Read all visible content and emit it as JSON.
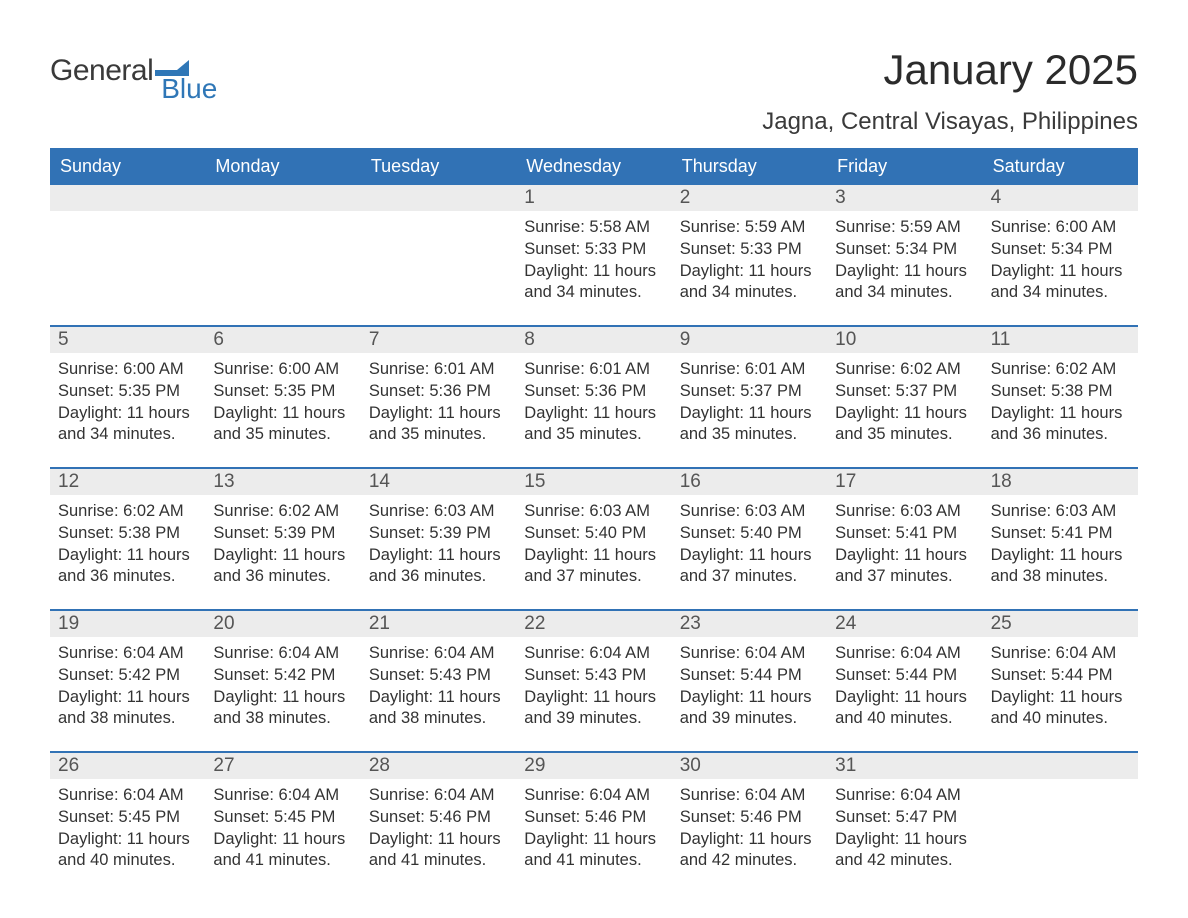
{
  "logo": {
    "text1": "General",
    "text2": "Blue",
    "flag_color": "#2f77b7",
    "text1_color": "#3a3a3a"
  },
  "title": "January 2025",
  "location": "Jagna, Central Visayas, Philippines",
  "colors": {
    "header_bg": "#3172b5",
    "header_text": "#ffffff",
    "daynum_bg": "#ececec",
    "daynum_text": "#555555",
    "body_text": "#333333",
    "week_border": "#3172b5",
    "page_bg": "#ffffff"
  },
  "weekdays": [
    "Sunday",
    "Monday",
    "Tuesday",
    "Wednesday",
    "Thursday",
    "Friday",
    "Saturday"
  ],
  "weeks": [
    [
      {
        "day": "",
        "sunrise": "",
        "sunset": "",
        "daylight": ""
      },
      {
        "day": "",
        "sunrise": "",
        "sunset": "",
        "daylight": ""
      },
      {
        "day": "",
        "sunrise": "",
        "sunset": "",
        "daylight": ""
      },
      {
        "day": "1",
        "sunrise": "Sunrise: 5:58 AM",
        "sunset": "Sunset: 5:33 PM",
        "daylight": "Daylight: 11 hours and 34 minutes."
      },
      {
        "day": "2",
        "sunrise": "Sunrise: 5:59 AM",
        "sunset": "Sunset: 5:33 PM",
        "daylight": "Daylight: 11 hours and 34 minutes."
      },
      {
        "day": "3",
        "sunrise": "Sunrise: 5:59 AM",
        "sunset": "Sunset: 5:34 PM",
        "daylight": "Daylight: 11 hours and 34 minutes."
      },
      {
        "day": "4",
        "sunrise": "Sunrise: 6:00 AM",
        "sunset": "Sunset: 5:34 PM",
        "daylight": "Daylight: 11 hours and 34 minutes."
      }
    ],
    [
      {
        "day": "5",
        "sunrise": "Sunrise: 6:00 AM",
        "sunset": "Sunset: 5:35 PM",
        "daylight": "Daylight: 11 hours and 34 minutes."
      },
      {
        "day": "6",
        "sunrise": "Sunrise: 6:00 AM",
        "sunset": "Sunset: 5:35 PM",
        "daylight": "Daylight: 11 hours and 35 minutes."
      },
      {
        "day": "7",
        "sunrise": "Sunrise: 6:01 AM",
        "sunset": "Sunset: 5:36 PM",
        "daylight": "Daylight: 11 hours and 35 minutes."
      },
      {
        "day": "8",
        "sunrise": "Sunrise: 6:01 AM",
        "sunset": "Sunset: 5:36 PM",
        "daylight": "Daylight: 11 hours and 35 minutes."
      },
      {
        "day": "9",
        "sunrise": "Sunrise: 6:01 AM",
        "sunset": "Sunset: 5:37 PM",
        "daylight": "Daylight: 11 hours and 35 minutes."
      },
      {
        "day": "10",
        "sunrise": "Sunrise: 6:02 AM",
        "sunset": "Sunset: 5:37 PM",
        "daylight": "Daylight: 11 hours and 35 minutes."
      },
      {
        "day": "11",
        "sunrise": "Sunrise: 6:02 AM",
        "sunset": "Sunset: 5:38 PM",
        "daylight": "Daylight: 11 hours and 36 minutes."
      }
    ],
    [
      {
        "day": "12",
        "sunrise": "Sunrise: 6:02 AM",
        "sunset": "Sunset: 5:38 PM",
        "daylight": "Daylight: 11 hours and 36 minutes."
      },
      {
        "day": "13",
        "sunrise": "Sunrise: 6:02 AM",
        "sunset": "Sunset: 5:39 PM",
        "daylight": "Daylight: 11 hours and 36 minutes."
      },
      {
        "day": "14",
        "sunrise": "Sunrise: 6:03 AM",
        "sunset": "Sunset: 5:39 PM",
        "daylight": "Daylight: 11 hours and 36 minutes."
      },
      {
        "day": "15",
        "sunrise": "Sunrise: 6:03 AM",
        "sunset": "Sunset: 5:40 PM",
        "daylight": "Daylight: 11 hours and 37 minutes."
      },
      {
        "day": "16",
        "sunrise": "Sunrise: 6:03 AM",
        "sunset": "Sunset: 5:40 PM",
        "daylight": "Daylight: 11 hours and 37 minutes."
      },
      {
        "day": "17",
        "sunrise": "Sunrise: 6:03 AM",
        "sunset": "Sunset: 5:41 PM",
        "daylight": "Daylight: 11 hours and 37 minutes."
      },
      {
        "day": "18",
        "sunrise": "Sunrise: 6:03 AM",
        "sunset": "Sunset: 5:41 PM",
        "daylight": "Daylight: 11 hours and 38 minutes."
      }
    ],
    [
      {
        "day": "19",
        "sunrise": "Sunrise: 6:04 AM",
        "sunset": "Sunset: 5:42 PM",
        "daylight": "Daylight: 11 hours and 38 minutes."
      },
      {
        "day": "20",
        "sunrise": "Sunrise: 6:04 AM",
        "sunset": "Sunset: 5:42 PM",
        "daylight": "Daylight: 11 hours and 38 minutes."
      },
      {
        "day": "21",
        "sunrise": "Sunrise: 6:04 AM",
        "sunset": "Sunset: 5:43 PM",
        "daylight": "Daylight: 11 hours and 38 minutes."
      },
      {
        "day": "22",
        "sunrise": "Sunrise: 6:04 AM",
        "sunset": "Sunset: 5:43 PM",
        "daylight": "Daylight: 11 hours and 39 minutes."
      },
      {
        "day": "23",
        "sunrise": "Sunrise: 6:04 AM",
        "sunset": "Sunset: 5:44 PM",
        "daylight": "Daylight: 11 hours and 39 minutes."
      },
      {
        "day": "24",
        "sunrise": "Sunrise: 6:04 AM",
        "sunset": "Sunset: 5:44 PM",
        "daylight": "Daylight: 11 hours and 40 minutes."
      },
      {
        "day": "25",
        "sunrise": "Sunrise: 6:04 AM",
        "sunset": "Sunset: 5:44 PM",
        "daylight": "Daylight: 11 hours and 40 minutes."
      }
    ],
    [
      {
        "day": "26",
        "sunrise": "Sunrise: 6:04 AM",
        "sunset": "Sunset: 5:45 PM",
        "daylight": "Daylight: 11 hours and 40 minutes."
      },
      {
        "day": "27",
        "sunrise": "Sunrise: 6:04 AM",
        "sunset": "Sunset: 5:45 PM",
        "daylight": "Daylight: 11 hours and 41 minutes."
      },
      {
        "day": "28",
        "sunrise": "Sunrise: 6:04 AM",
        "sunset": "Sunset: 5:46 PM",
        "daylight": "Daylight: 11 hours and 41 minutes."
      },
      {
        "day": "29",
        "sunrise": "Sunrise: 6:04 AM",
        "sunset": "Sunset: 5:46 PM",
        "daylight": "Daylight: 11 hours and 41 minutes."
      },
      {
        "day": "30",
        "sunrise": "Sunrise: 6:04 AM",
        "sunset": "Sunset: 5:46 PM",
        "daylight": "Daylight: 11 hours and 42 minutes."
      },
      {
        "day": "31",
        "sunrise": "Sunrise: 6:04 AM",
        "sunset": "Sunset: 5:47 PM",
        "daylight": "Daylight: 11 hours and 42 minutes."
      },
      {
        "day": "",
        "sunrise": "",
        "sunset": "",
        "daylight": ""
      }
    ]
  ]
}
